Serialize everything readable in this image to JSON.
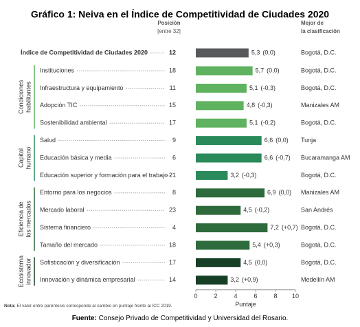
{
  "chart_data": {
    "type": "bar",
    "title": "Gráfico 1: Neiva en el Índice de Competitividad de Ciudades 2020",
    "rank_header": [
      "Posición",
      "[entre 32]"
    ],
    "best_header": [
      "Mejor de",
      "la clasificación"
    ],
    "overall": {
      "category": "Índice de Competitividad de Ciudades 2020",
      "rank": 12,
      "value": 5.3,
      "value_label": "5,3",
      "change": "(0,0)",
      "best": "Bogotá, D.C.",
      "color": "#58595b"
    },
    "groups": [
      {
        "name_lines": [
          "Condiciones",
          "habilitantes"
        ],
        "color": "#5fb25f",
        "categories": [
          "Instituciones",
          "Infraestructura y equipamiento",
          "Adopción TIC",
          "Sostenibilidad ambiental"
        ],
        "ranks": [
          18,
          11,
          15,
          17
        ],
        "values": [
          5.7,
          5.1,
          4.8,
          5.1
        ],
        "value_labels": [
          "5,7",
          "5,1",
          "4,8",
          "5,1"
        ],
        "changes": [
          "(0,0)",
          "(-0,3)",
          "(-0,3)",
          "(-0,2)"
        ],
        "best": [
          "Bogotá, D.C.",
          "Bogotá, D.C.",
          "Manizales AM",
          "Bogotá, D.C."
        ]
      },
      {
        "name_lines": [
          "Capital",
          "humano"
        ],
        "color": "#2a8a5a",
        "categories": [
          "Salud",
          "Educación básica y media",
          "Educación superior y formación para el trabajo"
        ],
        "ranks": [
          9,
          6,
          21
        ],
        "values": [
          6.6,
          6.6,
          3.2
        ],
        "value_labels": [
          "6,6",
          "6,6",
          "3,2"
        ],
        "changes": [
          "(0,0)",
          "(-0,7)",
          "(-0,3)"
        ],
        "best": [
          "Tunja",
          "Bucaramanga AM",
          "Bogotá, D.C."
        ]
      },
      {
        "name_lines": [
          "Eficiencia de",
          "los mercados"
        ],
        "color": "#2e6b3c",
        "categories": [
          "Entorno para los negocios",
          "Mercado laboral",
          "Sistema financiero",
          "Tamaño del mercado"
        ],
        "ranks": [
          8,
          23,
          4,
          18
        ],
        "values": [
          6.9,
          4.5,
          7.2,
          5.4
        ],
        "value_labels": [
          "6,9",
          "4,5",
          "7,2",
          "5,4"
        ],
        "changes": [
          "(0,0)",
          "(-0,2)",
          "(+0,7)",
          "(+0,3)"
        ],
        "best": [
          "Manizales AM",
          "San Andrés",
          "Bogotá, D.C.",
          "Bogotá, D.C."
        ]
      },
      {
        "name_lines": [
          "Ecosistema",
          "innovador"
        ],
        "color": "#173f25",
        "categories": [
          "Sofisticación y diversificación",
          "Innovación y dinámica empresarial"
        ],
        "ranks": [
          17,
          14
        ],
        "values": [
          4.5,
          3.2
        ],
        "value_labels": [
          "4,5",
          "3,2"
        ],
        "changes": [
          "(0,0)",
          "(+0,9)"
        ],
        "best": [
          "Bogotá, D.C.",
          "Medellín AM"
        ]
      }
    ],
    "xlim": [
      0,
      10
    ],
    "xticks": [
      0,
      2,
      4,
      6,
      8,
      10
    ],
    "xlabel": "Puntaje",
    "note_label": "Nota:",
    "note": "El valor entre paréntesis corresponde al cambio en puntaje frente al ICC 2019.",
    "source_label": "Fuente:",
    "source": "Consejo Privado de Competitividad y Universidad del Rosario."
  }
}
